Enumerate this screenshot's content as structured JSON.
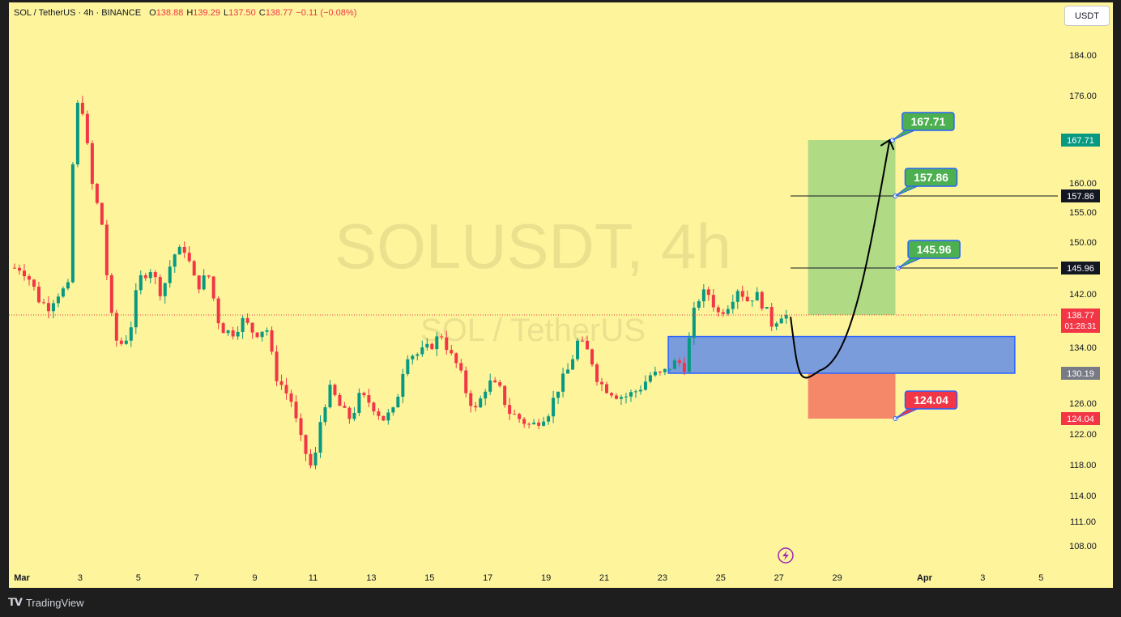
{
  "header": {
    "symbol": "SOL / TetherUS · 4h · BINANCE",
    "o_label": "O",
    "o_value": "138.88",
    "h_label": "H",
    "h_value": "139.29",
    "l_label": "L",
    "l_value": "137.50",
    "c_label": "C",
    "c_value": "138.77",
    "change": "−0.11 (−0.08%)"
  },
  "currency_button": "USDT",
  "watermark": {
    "line1": "SOLUSDT, 4h",
    "line2": "SOL / TetherUS"
  },
  "footer": {
    "brand": "TradingView"
  },
  "colors": {
    "background": "#fdf49c",
    "up": "#089981",
    "down": "#f23645",
    "zone_blue": "#4f7ff0",
    "profit_green": "#8fce7a",
    "stop_red": "#f47c63",
    "label_green": "#4caf50"
  },
  "chart_data": {
    "type": "candlestick",
    "symbol": "SOL / TetherUS",
    "interval": "4h",
    "exchange": "BINANCE",
    "ylim": [
      104,
      190
    ],
    "y_ticks": [
      "184.00",
      "176.00",
      "160.00",
      "155.00",
      "150.00",
      "142.00",
      "134.00",
      "126.00",
      "122.00",
      "118.00",
      "114.00",
      "111.00",
      "108.00"
    ],
    "x_ticks": [
      "Mar",
      "3",
      "5",
      "7",
      "9",
      "11",
      "13",
      "15",
      "17",
      "19",
      "21",
      "23",
      "25",
      "27",
      "29",
      "Apr",
      "3",
      "5"
    ],
    "x_tick_days": [
      1,
      3,
      5,
      7,
      9,
      11,
      13,
      15,
      17,
      19,
      21,
      23,
      25,
      27,
      29,
      32,
      34,
      36
    ],
    "last_close": 138.77,
    "countdown": "01:28:31",
    "path": [
      [
        1.0,
        146
      ],
      [
        1.3,
        144
      ],
      [
        1.6,
        141
      ],
      [
        1.9,
        140
      ],
      [
        2.2,
        142
      ],
      [
        2.6,
        143
      ],
      [
        2.8,
        170
      ],
      [
        3.0,
        177
      ],
      [
        3.4,
        160
      ],
      [
        3.8,
        152
      ],
      [
        4.0,
        140
      ],
      [
        4.3,
        134
      ],
      [
        4.7,
        136
      ],
      [
        5.0,
        144
      ],
      [
        5.4,
        146
      ],
      [
        5.8,
        142
      ],
      [
        6.2,
        148
      ],
      [
        6.6,
        149
      ],
      [
        7.0,
        143
      ],
      [
        7.4,
        145
      ],
      [
        7.8,
        137
      ],
      [
        8.2,
        136
      ],
      [
        8.6,
        138
      ],
      [
        9.0,
        136
      ],
      [
        9.4,
        137
      ],
      [
        9.7,
        130
      ],
      [
        10.0,
        128
      ],
      [
        10.3,
        126
      ],
      [
        10.5,
        122
      ],
      [
        10.8,
        119
      ],
      [
        11.0,
        117
      ],
      [
        11.3,
        125
      ],
      [
        11.6,
        128
      ],
      [
        12.0,
        125
      ],
      [
        12.3,
        124
      ],
      [
        12.6,
        127
      ],
      [
        13.0,
        126
      ],
      [
        13.4,
        124
      ],
      [
        13.8,
        125
      ],
      [
        14.2,
        133
      ],
      [
        14.6,
        133
      ],
      [
        15.0,
        134
      ],
      [
        15.4,
        136
      ],
      [
        15.7,
        133
      ],
      [
        16.0,
        131
      ],
      [
        16.3,
        127
      ],
      [
        16.6,
        125
      ],
      [
        17.0,
        129
      ],
      [
        17.4,
        128
      ],
      [
        17.7,
        125
      ],
      [
        18.1,
        124
      ],
      [
        18.5,
        123
      ],
      [
        18.8,
        124
      ],
      [
        19.1,
        125
      ],
      [
        19.4,
        128
      ],
      [
        19.8,
        131
      ],
      [
        20.1,
        135
      ],
      [
        20.5,
        133
      ],
      [
        20.8,
        129
      ],
      [
        21.1,
        128
      ],
      [
        21.5,
        127
      ],
      [
        21.8,
        127
      ],
      [
        22.2,
        128
      ],
      [
        22.6,
        130
      ],
      [
        23.0,
        130
      ],
      [
        23.2,
        131
      ],
      [
        23.5,
        132
      ],
      [
        23.8,
        131
      ],
      [
        24.0,
        138
      ],
      [
        24.3,
        142
      ],
      [
        24.6,
        142
      ],
      [
        24.9,
        139
      ],
      [
        25.2,
        140
      ],
      [
        25.6,
        143
      ],
      [
        25.9,
        141
      ],
      [
        26.2,
        142
      ],
      [
        26.5,
        140
      ],
      [
        26.8,
        137
      ],
      [
        27.0,
        139
      ],
      [
        27.25,
        138.77
      ]
    ],
    "projection_curve": {
      "from": [
        27.4,
        138.5
      ],
      "through": [
        28.4,
        130.6
      ],
      "to": [
        30.8,
        167.71
      ]
    },
    "zones": [
      {
        "name": "demand zone",
        "day_from": 23.2,
        "day_to": 35.1,
        "price_from": 130.19,
        "price_to": 135.6
      },
      {
        "name": "target zone",
        "day_from": 28.0,
        "day_to": 31.0,
        "price_from": 138.77,
        "price_to": 167.71
      },
      {
        "name": "stop zone",
        "day_from": 28.0,
        "day_to": 31.0,
        "price_from": 124.04,
        "price_to": 130.19
      }
    ],
    "levels": [
      {
        "price": 167.71,
        "label": "167.71",
        "axis_color": "#089981",
        "line": false
      },
      {
        "price": 157.86,
        "label": "157.86",
        "axis_color": "#131722",
        "line": true
      },
      {
        "price": 145.96,
        "label": "145.96",
        "axis_color": "#131722",
        "line": true
      },
      {
        "price": 130.19,
        "label": "130.19",
        "axis_color": "#787b86",
        "line": false
      },
      {
        "price": 124.04,
        "label": "124.04",
        "axis_color": "#f23645",
        "line": false
      }
    ],
    "callouts": [
      {
        "text": "167.71",
        "day": 30.9,
        "price": 167.71,
        "color": "#4caf50"
      },
      {
        "text": "157.86",
        "day": 31.0,
        "price": 157.86,
        "color": "#4caf50"
      },
      {
        "text": "145.96",
        "day": 31.1,
        "price": 145.96,
        "color": "#4caf50"
      },
      {
        "text": "124.04",
        "day": 31.0,
        "price": 124.04,
        "color": "#f23645"
      }
    ]
  }
}
